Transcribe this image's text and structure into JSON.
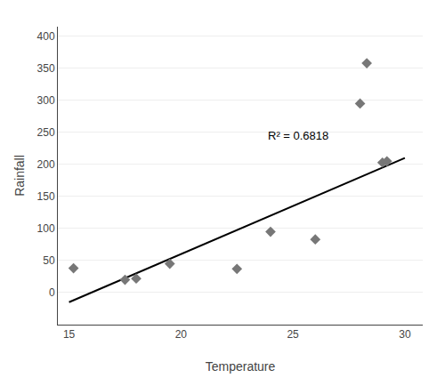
{
  "chart_data": {
    "type": "scatter",
    "xlabel": "Temperature",
    "ylabel": "Rainfall",
    "series": [
      {
        "type": "scatter",
        "marker": "diamond",
        "color": "#777777",
        "x": [
          15.2,
          17.5,
          18.0,
          19.5,
          22.5,
          24.0,
          26.0,
          28.0,
          28.3,
          29.0,
          29.2
        ],
        "values": [
          38,
          20,
          22,
          45,
          37,
          95,
          83,
          295,
          358,
          203,
          205
        ]
      },
      {
        "type": "line",
        "line_style": "solid",
        "color": "#000000",
        "x": [
          15.0,
          30.0
        ],
        "values": [
          -15,
          210
        ]
      }
    ],
    "annotations": [
      {
        "text": "R² = 0.6818",
        "x": 23.8,
        "y": 232
      }
    ],
    "xlim": [
      14.5,
      30.8
    ],
    "ylim": [
      -50,
      415
    ],
    "xticks": [
      15,
      20,
      25,
      30
    ],
    "yticks": [
      0,
      50,
      100,
      150,
      200,
      250,
      300,
      350,
      400
    ],
    "grid": "y"
  }
}
